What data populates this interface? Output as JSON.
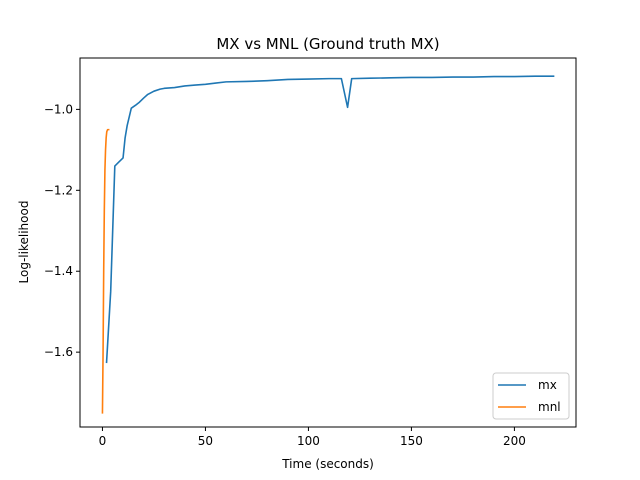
{
  "chart_data": {
    "type": "line",
    "title": "MX vs MNL (Ground truth MX)",
    "xlabel": "Time (seconds)",
    "ylabel": "Log-likelihood",
    "xlim": [
      -10.9,
      229.9
    ],
    "ylim": [
      -1.785,
      -0.873
    ],
    "xticks": [
      0,
      50,
      100,
      150,
      200
    ],
    "xtick_labels": [
      "0",
      "50",
      "100",
      "150",
      "200"
    ],
    "yticks": [
      -1.6,
      -1.4,
      -1.2,
      -1.0
    ],
    "ytick_labels": [
      "−1.6",
      "−1.4",
      "−1.2",
      "−1.0"
    ],
    "grid": false,
    "legend_position": "lower right",
    "series": [
      {
        "name": "mx",
        "color": "#1f77b4",
        "x": [
          2,
          4,
          6,
          8,
          10,
          11,
          12,
          14,
          16,
          18,
          20,
          22,
          25,
          28,
          30,
          35,
          40,
          45,
          50,
          55,
          60,
          70,
          80,
          90,
          100,
          110,
          116,
          119,
          121,
          130,
          140,
          150,
          160,
          170,
          180,
          190,
          200,
          210,
          219
        ],
        "y": [
          -1.625,
          -1.45,
          -1.14,
          -1.13,
          -1.12,
          -1.07,
          -1.04,
          -0.997,
          -0.99,
          -0.982,
          -0.972,
          -0.963,
          -0.955,
          -0.95,
          -0.948,
          -0.946,
          -0.942,
          -0.94,
          -0.938,
          -0.935,
          -0.932,
          -0.931,
          -0.929,
          -0.926,
          -0.925,
          -0.924,
          -0.924,
          -0.995,
          -0.924,
          -0.923,
          -0.922,
          -0.921,
          -0.921,
          -0.92,
          -0.92,
          -0.919,
          -0.919,
          -0.918,
          -0.918
        ]
      },
      {
        "name": "mnl",
        "color": "#ff7f0e",
        "x": [
          0,
          0.3,
          0.6,
          0.9,
          1.2,
          1.5,
          1.8,
          2.1,
          2.5,
          3.0
        ],
        "y": [
          -1.75,
          -1.6,
          -1.4,
          -1.25,
          -1.15,
          -1.1,
          -1.07,
          -1.055,
          -1.05,
          -1.05
        ]
      }
    ]
  }
}
